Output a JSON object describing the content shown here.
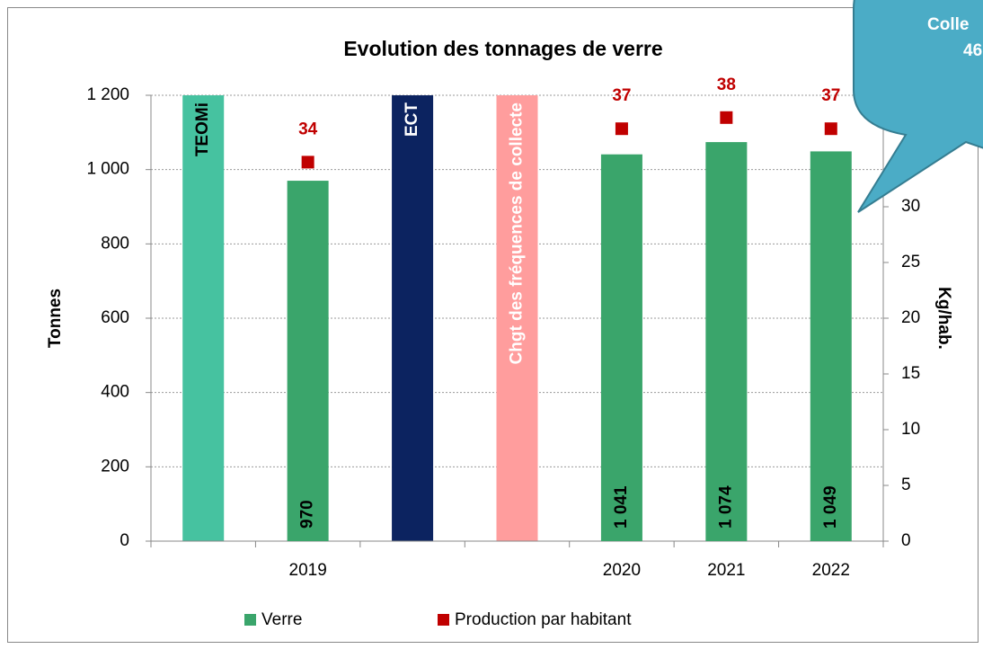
{
  "chart_data": {
    "type": "bar",
    "title": "Evolution des tonnages de verre",
    "y_label": "Tonnes",
    "y2_label": "Kg/hab.",
    "categories": [
      null,
      "2019",
      null,
      null,
      "2020",
      "2021",
      "2022"
    ],
    "series": [
      {
        "name": "Verre",
        "type": "bar",
        "color": "#3aa56b",
        "values": [
          null,
          970,
          null,
          null,
          1041,
          1074,
          1049
        ],
        "value_labels": [
          null,
          "970",
          null,
          null,
          "1 041",
          "1 074",
          "1 049"
        ]
      },
      {
        "name": "Production par habitant",
        "type": "scatter",
        "axis": "y2",
        "color": "#c00000",
        "values": [
          null,
          34,
          null,
          null,
          37,
          38,
          37
        ]
      }
    ],
    "annotations": [
      {
        "text": "TEOMi",
        "color": "#46c2a0",
        "text_color": "#000000"
      },
      {
        "text": "ECT",
        "color": "#0c2360",
        "text_color": "#ffffff"
      },
      {
        "text": "Chgt des fréquences de collecte",
        "color": "#ff9d9d",
        "text_color": "#ffffff"
      }
    ],
    "callout": [
      "Colle",
      "46"
    ],
    "ylim": [
      0,
      1200
    ],
    "yticks": [
      0,
      200,
      400,
      600,
      800,
      {
        "value": 1000,
        "label": "1 000"
      },
      {
        "value": 1200,
        "label": "1 200"
      }
    ],
    "y2lim": [
      0,
      40
    ],
    "y2ticks": [
      0,
      5,
      10,
      15,
      20,
      25,
      30
    ],
    "grid": true,
    "legend": "bottom"
  }
}
